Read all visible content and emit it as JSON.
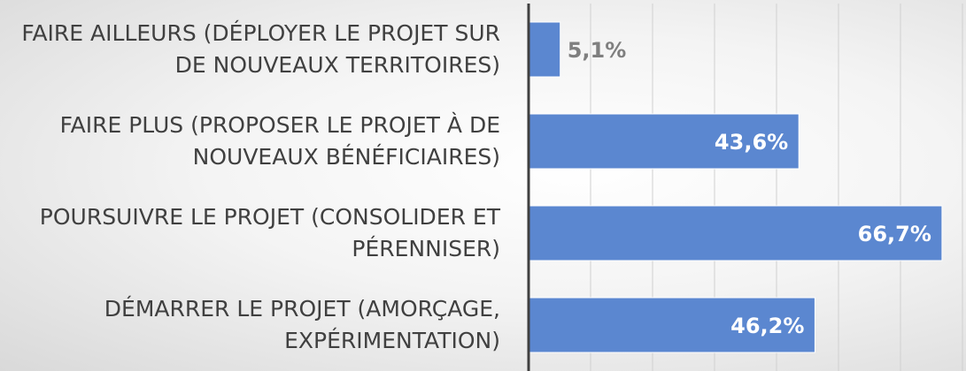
{
  "chart_data": {
    "type": "bar",
    "orientation": "horizontal",
    "categories": [
      "FAIRE AILLEURS (DÉPLOYER LE PROJET SUR\nDE NOUVEAUX TERRITOIRES)",
      "FAIRE PLUS (PROPOSER LE PROJET À DE\nNOUVEAUX BÉNÉFICIAIRES)",
      "POURSUIVRE LE PROJET (CONSOLIDER ET\nPÉRENNISER)",
      "DÉMARRER LE PROJET (AMORÇAGE,\nEXPÉRIMENTATION)"
    ],
    "values": [
      5.1,
      43.6,
      66.7,
      46.2
    ],
    "value_labels": [
      "5,1%",
      "43,6%",
      "66,7%",
      "46,2%"
    ],
    "color": "#5b87d0",
    "xlim": [
      0,
      70
    ],
    "xticks": [
      0,
      10,
      20,
      30,
      40,
      50,
      60,
      70
    ],
    "grid": true
  }
}
